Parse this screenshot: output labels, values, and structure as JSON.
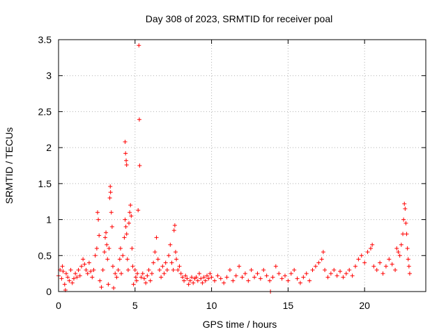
{
  "chart_data": {
    "type": "scatter",
    "title": "Day 308 of 2023, SRMTID for receiver poal",
    "xlabel": "GPS time / hours",
    "ylabel": "SRMTID / TECUs",
    "xlim": [
      0,
      24
    ],
    "ylim": [
      0,
      3.5
    ],
    "xticks": [
      0,
      5,
      10,
      15,
      20
    ],
    "yticks": [
      0,
      0.5,
      1,
      1.5,
      2,
      2.5,
      3,
      3.5
    ],
    "xtick_labels": [
      "0",
      "5",
      "10",
      "15",
      "20"
    ],
    "ytick_labels": [
      "0",
      "0.5",
      "1",
      "1.5",
      "2",
      "2.5",
      "3",
      "3.5"
    ],
    "grid": true,
    "marker": "+",
    "series": [
      {
        "name": "SRMTID",
        "color": "#ff0000",
        "points": [
          [
            0.0,
            0.22
          ],
          [
            0.1,
            0.3
          ],
          [
            0.2,
            0.18
          ],
          [
            0.25,
            0.35
          ],
          [
            0.3,
            0.28
          ],
          [
            0.4,
            0.1
          ],
          [
            0.45,
            0.02
          ],
          [
            0.5,
            0.25
          ],
          [
            0.6,
            0.2
          ],
          [
            0.7,
            0.15
          ],
          [
            0.8,
            0.3
          ],
          [
            0.9,
            0.12
          ],
          [
            1.0,
            0.18
          ],
          [
            1.1,
            0.25
          ],
          [
            1.2,
            0.2
          ],
          [
            1.3,
            0.3
          ],
          [
            1.4,
            0.22
          ],
          [
            1.5,
            0.35
          ],
          [
            1.6,
            0.45
          ],
          [
            1.7,
            0.38
          ],
          [
            1.8,
            0.3
          ],
          [
            1.9,
            0.25
          ],
          [
            2.0,
            0.4
          ],
          [
            2.1,
            0.28
          ],
          [
            2.2,
            0.2
          ],
          [
            2.3,
            0.3
          ],
          [
            2.4,
            0.5
          ],
          [
            2.5,
            0.6
          ],
          [
            2.55,
            1.1
          ],
          [
            2.6,
            1.0
          ],
          [
            2.65,
            0.78
          ],
          [
            2.7,
            0.15
          ],
          [
            2.8,
            0.06
          ],
          [
            2.9,
            0.3
          ],
          [
            3.0,
            0.55
          ],
          [
            3.05,
            0.75
          ],
          [
            3.1,
            0.82
          ],
          [
            3.15,
            0.65
          ],
          [
            3.2,
            0.45
          ],
          [
            3.25,
            0.1
          ],
          [
            3.3,
            0.6
          ],
          [
            3.35,
            1.3
          ],
          [
            3.38,
            1.46
          ],
          [
            3.4,
            1.38
          ],
          [
            3.45,
            1.1
          ],
          [
            3.5,
            0.9
          ],
          [
            3.55,
            0.35
          ],
          [
            3.6,
            0.05
          ],
          [
            3.7,
            0.25
          ],
          [
            3.8,
            0.2
          ],
          [
            3.9,
            0.3
          ],
          [
            4.0,
            0.45
          ],
          [
            4.05,
            0.6
          ],
          [
            4.1,
            0.25
          ],
          [
            4.2,
            0.5
          ],
          [
            4.3,
            0.75
          ],
          [
            4.35,
            1.0
          ],
          [
            4.4,
            0.9
          ],
          [
            4.45,
            0.8
          ],
          [
            4.5,
            0.45
          ],
          [
            4.55,
            0.3
          ],
          [
            4.6,
            0.95
          ],
          [
            4.65,
            1.1
          ],
          [
            4.7,
            1.2
          ],
          [
            4.75,
            1.05
          ],
          [
            4.8,
            0.6
          ],
          [
            4.85,
            0.35
          ],
          [
            4.9,
            0.1
          ],
          [
            5.0,
            0.3
          ],
          [
            5.05,
            0.2
          ],
          [
            5.1,
            0.15
          ],
          [
            5.15,
            0.25
          ],
          [
            4.35,
            2.08
          ],
          [
            4.38,
            1.92
          ],
          [
            4.42,
            1.82
          ],
          [
            4.45,
            1.76
          ],
          [
            5.25,
            3.42
          ],
          [
            5.28,
            2.39
          ],
          [
            5.3,
            1.75
          ],
          [
            5.2,
            1.13
          ],
          [
            5.4,
            0.2
          ],
          [
            5.5,
            0.25
          ],
          [
            5.6,
            0.18
          ],
          [
            5.7,
            0.12
          ],
          [
            5.8,
            0.22
          ],
          [
            5.9,
            0.3
          ],
          [
            6.0,
            0.15
          ],
          [
            6.1,
            0.25
          ],
          [
            6.2,
            0.4
          ],
          [
            6.3,
            0.55
          ],
          [
            6.4,
            0.75
          ],
          [
            6.5,
            0.45
          ],
          [
            6.6,
            0.3
          ],
          [
            6.7,
            0.2
          ],
          [
            6.8,
            0.35
          ],
          [
            6.9,
            0.25
          ],
          [
            7.0,
            0.4
          ],
          [
            7.1,
            0.3
          ],
          [
            7.2,
            0.5
          ],
          [
            7.3,
            0.65
          ],
          [
            7.4,
            0.4
          ],
          [
            7.5,
            0.3
          ],
          [
            7.55,
            0.85
          ],
          [
            7.6,
            0.92
          ],
          [
            7.65,
            0.55
          ],
          [
            7.7,
            0.45
          ],
          [
            7.8,
            0.3
          ],
          [
            7.9,
            0.35
          ],
          [
            8.0,
            0.25
          ],
          [
            8.1,
            0.2
          ],
          [
            8.2,
            0.15
          ],
          [
            8.3,
            0.22
          ],
          [
            8.4,
            0.18
          ],
          [
            8.5,
            0.1
          ],
          [
            8.6,
            0.15
          ],
          [
            8.7,
            0.2
          ],
          [
            8.8,
            0.12
          ],
          [
            8.9,
            0.18
          ],
          [
            9.0,
            0.2
          ],
          [
            9.1,
            0.15
          ],
          [
            9.2,
            0.25
          ],
          [
            9.3,
            0.18
          ],
          [
            9.4,
            0.12
          ],
          [
            9.5,
            0.2
          ],
          [
            9.6,
            0.15
          ],
          [
            9.7,
            0.22
          ],
          [
            9.8,
            0.18
          ],
          [
            9.9,
            0.25
          ],
          [
            10.0,
            0.2
          ],
          [
            10.2,
            0.15
          ],
          [
            10.4,
            0.22
          ],
          [
            10.6,
            0.18
          ],
          [
            10.8,
            0.12
          ],
          [
            11.0,
            0.2
          ],
          [
            11.2,
            0.3
          ],
          [
            11.4,
            0.15
          ],
          [
            11.6,
            0.22
          ],
          [
            11.8,
            0.35
          ],
          [
            12.0,
            0.2
          ],
          [
            12.2,
            0.25
          ],
          [
            12.4,
            0.15
          ],
          [
            12.6,
            0.3
          ],
          [
            12.8,
            0.2
          ],
          [
            13.0,
            0.25
          ],
          [
            13.2,
            0.18
          ],
          [
            13.4,
            0.3
          ],
          [
            13.6,
            0.22
          ],
          [
            13.8,
            0.15
          ],
          [
            13.85,
            0.0
          ],
          [
            14.0,
            0.2
          ],
          [
            14.2,
            0.35
          ],
          [
            14.4,
            0.25
          ],
          [
            14.6,
            0.18
          ],
          [
            14.8,
            0.22
          ],
          [
            15.0,
            0.15
          ],
          [
            15.2,
            0.25
          ],
          [
            15.4,
            0.3
          ],
          [
            15.6,
            0.18
          ],
          [
            15.8,
            0.12
          ],
          [
            16.0,
            0.2
          ],
          [
            16.2,
            0.25
          ],
          [
            16.4,
            0.15
          ],
          [
            16.6,
            0.3
          ],
          [
            16.8,
            0.35
          ],
          [
            17.0,
            0.4
          ],
          [
            17.2,
            0.45
          ],
          [
            17.3,
            0.55
          ],
          [
            17.4,
            0.3
          ],
          [
            17.6,
            0.2
          ],
          [
            17.8,
            0.25
          ],
          [
            18.0,
            0.3
          ],
          [
            18.2,
            0.22
          ],
          [
            18.4,
            0.28
          ],
          [
            18.6,
            0.2
          ],
          [
            18.8,
            0.25
          ],
          [
            19.0,
            0.3
          ],
          [
            19.2,
            0.22
          ],
          [
            19.4,
            0.35
          ],
          [
            19.6,
            0.45
          ],
          [
            19.8,
            0.5
          ],
          [
            20.0,
            0.4
          ],
          [
            20.2,
            0.55
          ],
          [
            20.4,
            0.6
          ],
          [
            20.5,
            0.65
          ],
          [
            20.6,
            0.35
          ],
          [
            20.8,
            0.3
          ],
          [
            21.0,
            0.4
          ],
          [
            21.2,
            0.25
          ],
          [
            21.4,
            0.35
          ],
          [
            21.6,
            0.45
          ],
          [
            21.8,
            0.38
          ],
          [
            22.0,
            0.3
          ],
          [
            22.1,
            0.6
          ],
          [
            22.2,
            0.55
          ],
          [
            22.3,
            0.5
          ],
          [
            22.4,
            0.65
          ],
          [
            22.5,
            0.8
          ],
          [
            22.55,
            1.0
          ],
          [
            22.6,
            1.22
          ],
          [
            22.65,
            1.15
          ],
          [
            22.7,
            0.95
          ],
          [
            22.75,
            0.8
          ],
          [
            22.8,
            0.6
          ],
          [
            22.85,
            0.45
          ],
          [
            22.9,
            0.35
          ],
          [
            22.95,
            0.25
          ]
        ]
      }
    ]
  }
}
